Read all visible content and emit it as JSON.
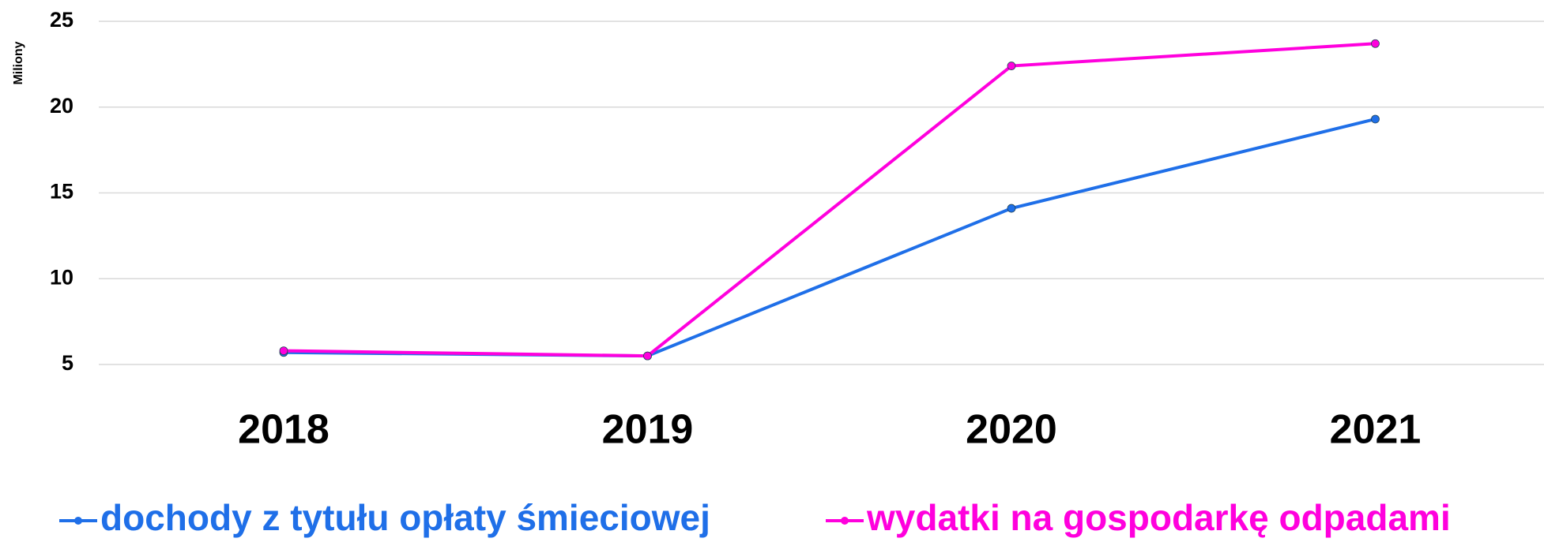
{
  "chart_data": {
    "type": "line",
    "y_label": "Miliony",
    "categories": [
      "2018",
      "2019",
      "2020",
      "2021"
    ],
    "series": [
      {
        "name": "dochody z tytułu opłaty śmieciowej",
        "color": "#1f6fe8",
        "values": [
          5.7,
          5.5,
          14.1,
          19.3
        ]
      },
      {
        "name": "wydatki na gospodarkę odpadami",
        "color": "#ff00dd",
        "values": [
          5.8,
          5.5,
          22.4,
          23.7
        ]
      }
    ],
    "ylim": [
      5,
      25
    ],
    "yticks": [
      5,
      10,
      15,
      20,
      25
    ],
    "grid": true,
    "legend": "bottom"
  }
}
